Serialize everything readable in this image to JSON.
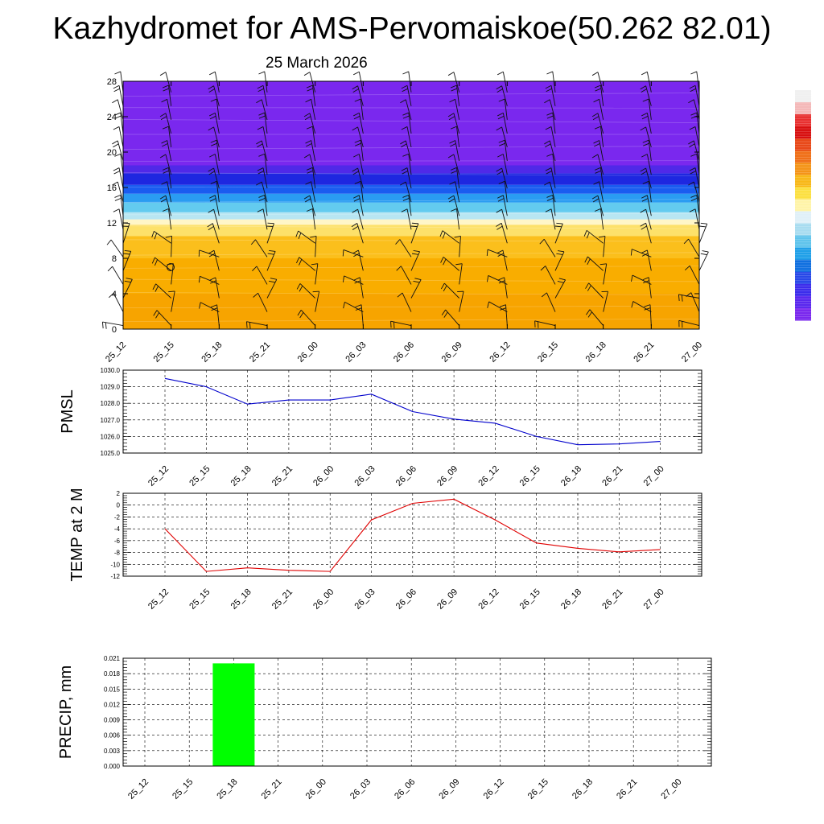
{
  "title": "Kazhydromet for AMS-Pervomaiskoe(50.262 82.01)",
  "subtitle": "25 March 2026",
  "chart_data": [
    {
      "type": "heatmap",
      "name": "vertical-cross-section",
      "x_tick_labels": [
        "25_12",
        "25_15",
        "25_18",
        "25_21",
        "26_00",
        "26_03",
        "26_06",
        "26_09",
        "26_12",
        "26_15",
        "26_18",
        "26_21",
        "27_00"
      ],
      "y_tick_labels": [
        "0",
        "4",
        "8",
        "12",
        "16",
        "20",
        "24",
        "28"
      ],
      "ylim": [
        0,
        28
      ],
      "field_bands": [
        {
          "from": 0,
          "to": 4,
          "color": "#f7a400"
        },
        {
          "from": 4,
          "to": 8,
          "color": "#f9ad00"
        },
        {
          "from": 8,
          "to": 10.5,
          "color": "#fbbf1c"
        },
        {
          "from": 10.5,
          "to": 11.8,
          "color": "#fde16a"
        },
        {
          "from": 11.8,
          "to": 12.4,
          "color": "#fff6c8"
        },
        {
          "from": 12.4,
          "to": 13.2,
          "color": "#b8e6f2"
        },
        {
          "from": 13.2,
          "to": 14.3,
          "color": "#63cbef"
        },
        {
          "from": 14.3,
          "to": 15.3,
          "color": "#2a9cf2"
        },
        {
          "from": 15.3,
          "to": 16.3,
          "color": "#1a5cf0"
        },
        {
          "from": 16.3,
          "to": 17.6,
          "color": "#1e27e0"
        },
        {
          "from": 17.6,
          "to": 18.5,
          "color": "#5029e8"
        },
        {
          "from": 18.5,
          "to": 28,
          "color": "#7a28ee"
        }
      ],
      "colorbar_colors": [
        "#f0f0f0",
        "#f4b8b8",
        "#e83030",
        "#d81010",
        "#e84818",
        "#f07018",
        "#f49418",
        "#f8b818",
        "#fce040",
        "#fff4a8",
        "#e0f0f8",
        "#a8dcf0",
        "#60c4ec",
        "#20a0e8",
        "#1070e0",
        "#2848e8",
        "#3c2cec",
        "#5a28ee",
        "#7a28ee"
      ]
    },
    {
      "type": "line",
      "name": "pmsl",
      "ylabel": "PMSL",
      "categories": [
        "25_12",
        "25_15",
        "25_18",
        "25_21",
        "26_00",
        "26_03",
        "26_06",
        "26_09",
        "26_12",
        "26_15",
        "26_18",
        "26_21",
        "27_00"
      ],
      "values": [
        1029.5,
        1029.0,
        1027.95,
        1028.2,
        1028.2,
        1028.55,
        1027.5,
        1027.05,
        1026.8,
        1026.0,
        1025.5,
        1025.55,
        1025.7
      ],
      "ylim": [
        1025.0,
        1030.0
      ],
      "y_tick_labels": [
        "1025.0",
        "1026.0",
        "1027.0",
        "1028.0",
        "1029.0",
        "1030.0"
      ],
      "line_color": "#0000cc"
    },
    {
      "type": "line",
      "name": "temperature",
      "ylabel": "TEMP at 2 M",
      "categories": [
        "25_12",
        "25_15",
        "25_18",
        "25_21",
        "26_00",
        "26_03",
        "26_06",
        "26_09",
        "26_12",
        "26_15",
        "26_18",
        "26_21",
        "27_00"
      ],
      "values": [
        -4.0,
        -11.2,
        -10.6,
        -11.0,
        -11.2,
        -2.5,
        0.3,
        1.0,
        -2.5,
        -6.4,
        -7.3,
        -7.9,
        -7.5
      ],
      "ylim": [
        -12,
        2
      ],
      "y_tick_labels": [
        "-12",
        "-10",
        "-8",
        "-6",
        "-4",
        "-2",
        "0",
        "2"
      ],
      "line_color": "#e00000"
    },
    {
      "type": "bar",
      "name": "precipitation",
      "ylabel": "PRECIP, mm",
      "categories": [
        "25_12",
        "25_15",
        "25_18",
        "25_21",
        "26_00",
        "26_03",
        "26_06",
        "26_09",
        "26_12",
        "26_15",
        "26_18",
        "26_21",
        "27_00"
      ],
      "values": [
        0,
        0,
        0.02,
        0,
        0,
        0,
        0,
        0,
        0,
        0,
        0,
        0,
        0
      ],
      "ylim": [
        0,
        0.021
      ],
      "y_tick_labels": [
        "0.000",
        "0.003",
        "0.006",
        "0.009",
        "0.012",
        "0.015",
        "0.018",
        "0.021"
      ],
      "bar_color": "#00ff00"
    }
  ]
}
